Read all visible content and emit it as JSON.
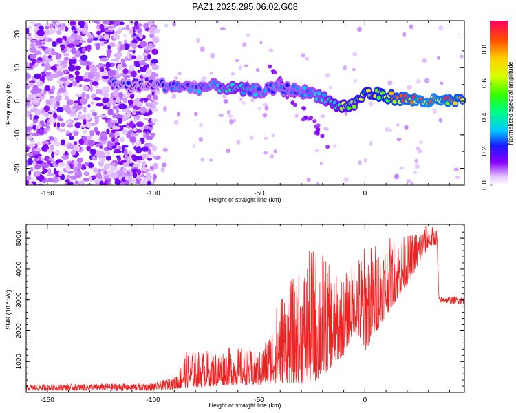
{
  "title": "PAZ1.2025.295.06.02.G08",
  "chart_data": [
    {
      "type": "heatmap",
      "title": "PAZ1.2025.295.06.02.G08",
      "xlabel": "Height of straight line (km)",
      "ylabel": "Frequency (Hz)",
      "xlim": [
        -160,
        47
      ],
      "ylim": [
        -25,
        24
      ],
      "xticks": [
        -150,
        -100,
        -50,
        0
      ],
      "yticks": [
        -20,
        -10,
        0,
        10,
        20
      ],
      "colorbar": {
        "label": "Normalized spectral amplitude",
        "range": [
          0,
          0.97
        ],
        "ticks": [
          0.0,
          0.2,
          0.4,
          0.6,
          0.8
        ],
        "tick_labels": [
          "0.0",
          "0.2",
          "0.4",
          "0.6",
          "0.8"
        ]
      },
      "ridge": [
        {
          "x": -120,
          "y": 6,
          "a": 0.25
        },
        {
          "x": -110,
          "y": 4,
          "a": 0.2
        },
        {
          "x": -100,
          "y": 5,
          "a": 0.22
        },
        {
          "x": -90,
          "y": 4.5,
          "a": 0.3
        },
        {
          "x": -80,
          "y": 4,
          "a": 0.28
        },
        {
          "x": -70,
          "y": 4.5,
          "a": 0.32
        },
        {
          "x": -60,
          "y": 3.5,
          "a": 0.38
        },
        {
          "x": -50,
          "y": 3,
          "a": 0.3
        },
        {
          "x": -40,
          "y": 4,
          "a": 0.28
        },
        {
          "x": -30,
          "y": 3,
          "a": 0.3
        },
        {
          "x": -20,
          "y": 1.5,
          "a": 0.35
        },
        {
          "x": -15,
          "y": -1,
          "a": 0.4
        },
        {
          "x": -10,
          "y": -1.5,
          "a": 0.55
        },
        {
          "x": -5,
          "y": -1,
          "a": 0.5
        },
        {
          "x": 0,
          "y": 2.5,
          "a": 0.65
        },
        {
          "x": 10,
          "y": 1.5,
          "a": 0.7
        },
        {
          "x": 20,
          "y": 0.5,
          "a": 0.8
        },
        {
          "x": 30,
          "y": 0,
          "a": 0.85
        },
        {
          "x": 40,
          "y": 0,
          "a": 0.8
        },
        {
          "x": 47,
          "y": 0,
          "a": 0.75
        }
      ]
    },
    {
      "type": "line",
      "xlabel": "Height of straight line (km)",
      "ylabel": "SNR (10 * v/v)",
      "xlim": [
        -160,
        47
      ],
      "ylim": [
        0,
        5450
      ],
      "xticks": [
        -150,
        -100,
        -50,
        0
      ],
      "yticks": [
        1000,
        2000,
        3000,
        4000,
        5000
      ],
      "series": [
        {
          "name": "SNR",
          "color": "#ee2222",
          "envelope": [
            {
              "x": -160,
              "low": 50,
              "high": 250
            },
            {
              "x": -100,
              "low": 50,
              "high": 300
            },
            {
              "x": -90,
              "low": 100,
              "high": 500
            },
            {
              "x": -85,
              "low": 150,
              "high": 1300
            },
            {
              "x": -70,
              "low": 200,
              "high": 1400
            },
            {
              "x": -60,
              "low": 250,
              "high": 1500
            },
            {
              "x": -50,
              "low": 200,
              "high": 1300
            },
            {
              "x": -45,
              "low": 300,
              "high": 2000
            },
            {
              "x": -40,
              "low": 300,
              "high": 3300
            },
            {
              "x": -30,
              "low": 300,
              "high": 4000
            },
            {
              "x": -25,
              "low": 300,
              "high": 4800
            },
            {
              "x": -20,
              "low": 500,
              "high": 4700
            },
            {
              "x": -15,
              "low": 900,
              "high": 3800
            },
            {
              "x": -10,
              "low": 1200,
              "high": 3800
            },
            {
              "x": -5,
              "low": 2000,
              "high": 4300
            },
            {
              "x": 0,
              "low": 1300,
              "high": 4800
            },
            {
              "x": 10,
              "low": 2500,
              "high": 5000
            },
            {
              "x": 20,
              "low": 3500,
              "high": 5100
            },
            {
              "x": 30,
              "low": 4700,
              "high": 5450
            },
            {
              "x": 34,
              "low": 4800,
              "high": 5300
            },
            {
              "x": 35,
              "low": 2900,
              "high": 3100
            },
            {
              "x": 47,
              "low": 2850,
              "high": 3100
            }
          ]
        }
      ]
    }
  ]
}
